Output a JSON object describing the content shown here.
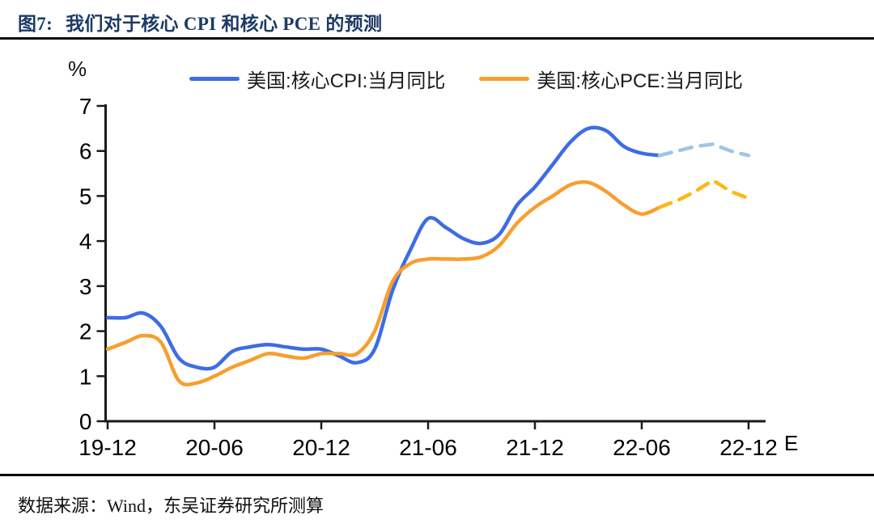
{
  "header": {
    "figure_label": "图7:",
    "title": "我们对于核心 CPI 和核心 PCE 的预测",
    "title_color": "#1d3a64"
  },
  "legend": {
    "items": [
      {
        "label": "美国:核心CPI:当月同比",
        "color": "#3e6ce6"
      },
      {
        "label": "美国:核心PCE:当月同比",
        "color": "#f89e2e"
      }
    ]
  },
  "footer": {
    "source": "数据来源：Wind，东吴证券研究所测算"
  },
  "chart_data": {
    "type": "line",
    "y_unit": "%",
    "ylim": [
      0,
      7
    ],
    "y_ticks": [
      0,
      1,
      2,
      3,
      4,
      5,
      6,
      7
    ],
    "x_tick_labels": [
      "19-12",
      "20-06",
      "20-12",
      "21-06",
      "21-12",
      "22-06",
      "22-12"
    ],
    "x_axis_suffix": "E",
    "grid": false,
    "legend_position": "top",
    "axis_color": "#1a1a1a",
    "months": [
      "19-12",
      "20-01",
      "20-02",
      "20-03",
      "20-04",
      "20-05",
      "20-06",
      "20-07",
      "20-08",
      "20-09",
      "20-10",
      "20-11",
      "20-12",
      "21-01",
      "21-02",
      "21-03",
      "21-04",
      "21-05",
      "21-06",
      "21-07",
      "21-08",
      "21-09",
      "21-10",
      "21-11",
      "21-12",
      "22-01",
      "22-02",
      "22-03",
      "22-04",
      "22-05",
      "22-06",
      "22-07",
      "22-08",
      "22-09",
      "22-10",
      "22-11",
      "22-12"
    ],
    "forecast_start_index": 31,
    "forecast_note": "values from 22-07 onward are dashed forecast (E)",
    "series": [
      {
        "name": "美国:核心CPI:当月同比",
        "color": "#3e6ce6",
        "forecast_color": "#9fc5e8",
        "values": [
          2.3,
          2.3,
          2.4,
          2.1,
          1.4,
          1.2,
          1.2,
          1.55,
          1.65,
          1.7,
          1.65,
          1.6,
          1.6,
          1.45,
          1.3,
          1.6,
          2.9,
          3.8,
          4.5,
          4.3,
          4.05,
          3.95,
          4.15,
          4.8,
          5.2,
          5.7,
          6.2,
          6.5,
          6.45,
          6.1,
          5.95,
          5.9,
          6.0,
          6.1,
          6.15,
          6.0,
          5.9
        ]
      },
      {
        "name": "美国:核心PCE:当月同比",
        "color": "#f89e2e",
        "forecast_color": "#fdb813",
        "values": [
          1.6,
          1.75,
          1.9,
          1.75,
          0.9,
          0.85,
          1.0,
          1.2,
          1.35,
          1.5,
          1.45,
          1.4,
          1.5,
          1.5,
          1.5,
          2.0,
          3.1,
          3.5,
          3.6,
          3.6,
          3.6,
          3.65,
          3.9,
          4.4,
          4.75,
          5.0,
          5.25,
          5.3,
          5.1,
          4.8,
          4.6,
          4.75,
          4.9,
          5.1,
          5.35,
          5.1,
          4.95
        ]
      }
    ]
  }
}
